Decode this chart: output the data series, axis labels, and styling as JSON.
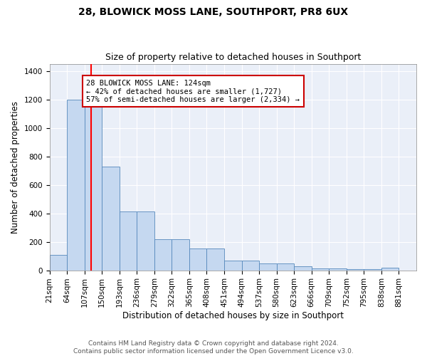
{
  "title": "28, BLOWICK MOSS LANE, SOUTHPORT, PR8 6UX",
  "subtitle": "Size of property relative to detached houses in Southport",
  "xlabel": "Distribution of detached houses by size in Southport",
  "ylabel": "Number of detached properties",
  "bin_edges": [
    21,
    64,
    107,
    150,
    193,
    236,
    279,
    322,
    365,
    408,
    451,
    494,
    537,
    580,
    623,
    666,
    709,
    752,
    795,
    838,
    881
  ],
  "bar_heights": [
    107,
    1197,
    1197,
    730,
    415,
    415,
    220,
    220,
    155,
    155,
    70,
    70,
    50,
    50,
    30,
    15,
    15,
    10,
    10,
    20
  ],
  "bar_color": "#c5d8f0",
  "bar_edge_color": "#5588bb",
  "background_color": "#eaeff8",
  "grid_color": "#ffffff",
  "red_line_x": 124,
  "annotation_text": "28 BLOWICK MOSS LANE: 124sqm\n← 42% of detached houses are smaller (1,727)\n57% of semi-detached houses are larger (2,334) →",
  "annotation_box_color": "#ffffff",
  "annotation_box_edge_color": "#cc0000",
  "ylim": [
    0,
    1450
  ],
  "yticks": [
    0,
    200,
    400,
    600,
    800,
    1000,
    1200,
    1400
  ],
  "footer_text": "Contains HM Land Registry data © Crown copyright and database right 2024.\nContains public sector information licensed under the Open Government Licence v3.0.",
  "title_fontsize": 10,
  "subtitle_fontsize": 9,
  "xlabel_fontsize": 8.5,
  "ylabel_fontsize": 8.5,
  "tick_fontsize": 7.5,
  "annotation_fontsize": 7.5,
  "footer_fontsize": 6.5
}
